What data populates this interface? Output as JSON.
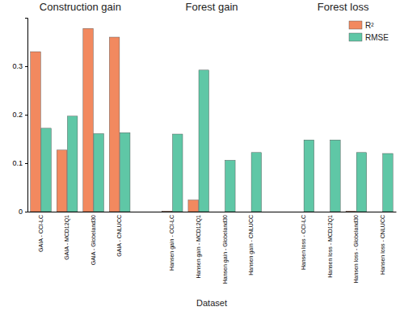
{
  "chart_data": {
    "type": "bar",
    "annotations": [
      "Construction gain",
      "Forest gain",
      "Forest loss"
    ],
    "x_label": "Dataset",
    "categories": [
      "GAIA - CCI-LC",
      "GAIA - MCD12Q1",
      "GAIA - Globeland30",
      "GAIA - CNLUCC",
      null,
      "Hansen gain - CCI-LC",
      "Hansen gain - MCD12Q1",
      "Hansen gain - Globeland30",
      "Hansen gain - CNLUCC",
      null,
      "Hansen loss - CCI-LC",
      "Hansen loss - MCD12Q1",
      "Hansen loss - Globeland30",
      "Hansen loss - CNLUCC"
    ],
    "series": [
      {
        "name": "R²",
        "color": "#f2895f",
        "values": [
          0.33,
          0.127,
          0.378,
          0.36,
          null,
          0.001,
          0.024,
          0.0,
          0.0,
          null,
          0.0,
          0.0,
          0.001,
          0.0
        ]
      },
      {
        "name": "RMSE",
        "color": "#5fc7a6",
        "values": [
          0.172,
          0.197,
          0.161,
          0.163,
          null,
          0.16,
          0.292,
          0.106,
          0.122,
          null,
          0.148,
          0.148,
          0.122,
          0.12
        ]
      }
    ],
    "ylim": [
      0,
      0.4
    ],
    "yticks": [
      0,
      0.1,
      0.2,
      0.3
    ],
    "grid": false,
    "legend": "top-right"
  }
}
